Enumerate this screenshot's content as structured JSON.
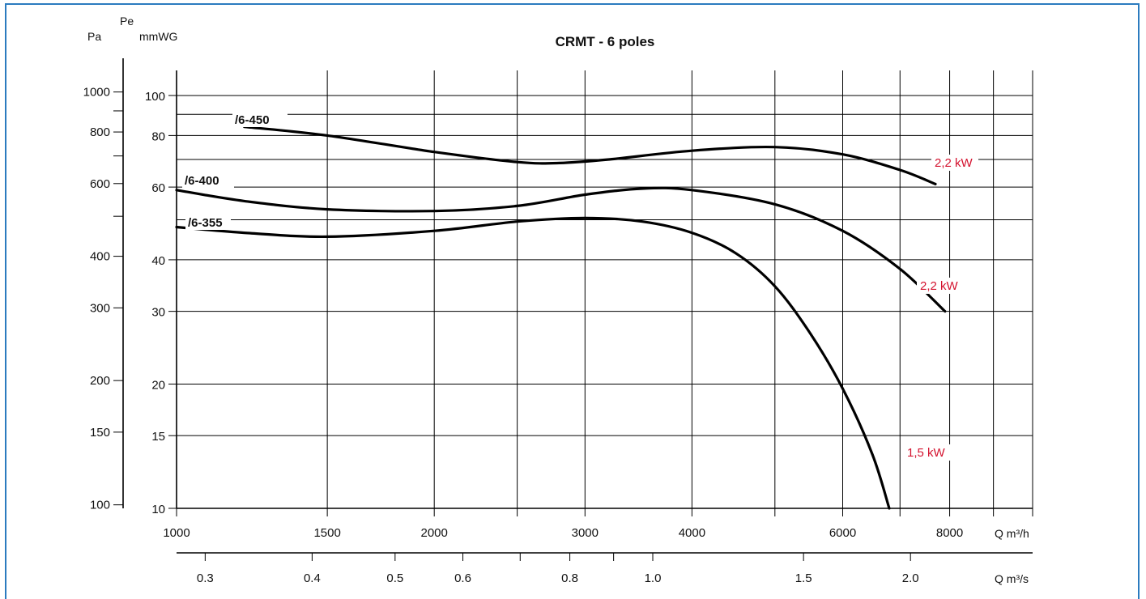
{
  "chart_data": {
    "type": "line",
    "title": "CRMT  -  6 poles",
    "left_axis_labels": {
      "pe": "Pe",
      "pa": "Pa",
      "mmwg": "mmWG"
    },
    "x_unit_top": "Q m³/h",
    "x_unit_bottom": "Q m³/s",
    "x_scale": "log",
    "y_scale": "log",
    "x_range_m3h": [
      1000,
      10000
    ],
    "y_range_mmwg": [
      10,
      115
    ],
    "grid": true,
    "x_ticks_m3h": [
      "1000",
      "1500",
      "2000",
      "3000",
      "4000",
      "6000",
      "8000"
    ],
    "x_ticks_m3s": [
      "0.3",
      "0.4",
      "0.5",
      "0.6",
      "0.8",
      "1.0",
      "1.5",
      "2.0"
    ],
    "y_ticks_pa": [
      "1000",
      "800",
      "600",
      "400",
      "300",
      "200",
      "150",
      "100"
    ],
    "y_ticks_mmwg": [
      "100",
      "80",
      "60",
      "40",
      "30",
      "20",
      "15",
      "10"
    ],
    "series": [
      {
        "name": "/6-450",
        "power": "2,2 kW",
        "x": [
          1200,
          1500,
          2000,
          2500,
          2800,
          3200,
          4000,
          5000,
          6000,
          7000,
          7700
        ],
        "y": [
          84,
          80,
          73,
          69,
          68.6,
          70,
          73.5,
          75,
          72,
          66,
          61
        ]
      },
      {
        "name": "/6-400",
        "power": "2,2 kW",
        "x": [
          1000,
          1200,
          1500,
          2000,
          2500,
          3000,
          3500,
          4000,
          5000,
          6000,
          7000,
          7900
        ],
        "y": [
          59,
          55.5,
          53,
          52.5,
          54,
          57.5,
          59.5,
          59,
          54.5,
          47,
          38,
          30
        ]
      },
      {
        "name": "/6-355",
        "power": "1,5 kW",
        "x": [
          1000,
          1200,
          1500,
          2000,
          2500,
          3000,
          3500,
          4000,
          4500,
          5000,
          5500,
          6000,
          6500,
          6800
        ],
        "y": [
          48,
          46.5,
          45.5,
          47,
          49.5,
          50.5,
          49.5,
          46.5,
          41.5,
          34.5,
          26.5,
          19.5,
          13.5,
          10
        ]
      }
    ]
  }
}
